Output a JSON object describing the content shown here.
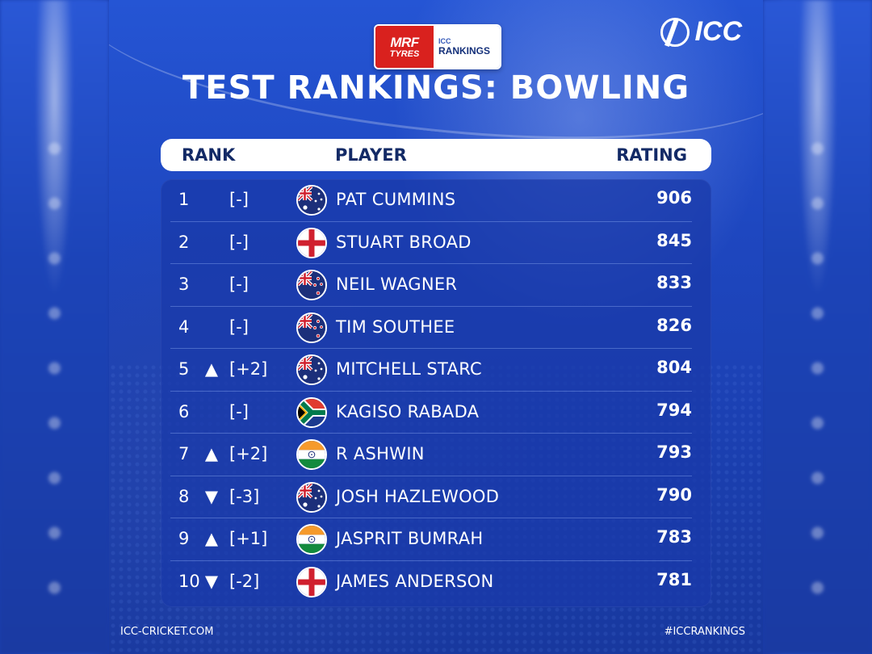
{
  "sponsor": {
    "mrf_line1": "MRF",
    "mrf_line2": "TYRES",
    "icc_small": "ICC",
    "rankings_label": "RANKINGS"
  },
  "brand": {
    "logo_text": "ICC"
  },
  "title": "TEST RANKINGS: BOWLING",
  "table": {
    "headers": {
      "rank": "RANK",
      "player": "PLAYER",
      "rating": "RATING"
    },
    "rows": [
      {
        "rank": "1",
        "trend": "",
        "change": "[-]",
        "flag": "australia-flag",
        "player": "PAT CUMMINS",
        "rating": "906"
      },
      {
        "rank": "2",
        "trend": "",
        "change": "[-]",
        "flag": "england-flag",
        "player": "STUART BROAD",
        "rating": "845"
      },
      {
        "rank": "3",
        "trend": "",
        "change": "[-]",
        "flag": "new-zealand-flag",
        "player": "NEIL WAGNER",
        "rating": "833"
      },
      {
        "rank": "4",
        "trend": "",
        "change": "[-]",
        "flag": "new-zealand-flag",
        "player": "TIM SOUTHEE",
        "rating": "826"
      },
      {
        "rank": "5",
        "trend": "▲",
        "change": "[+2]",
        "flag": "australia-flag",
        "player": "MITCHELL STARC",
        "rating": "804"
      },
      {
        "rank": "6",
        "trend": "",
        "change": "[-]",
        "flag": "south-africa-flag",
        "player": "KAGISO RABADA",
        "rating": "794"
      },
      {
        "rank": "7",
        "trend": "▲",
        "change": "[+2]",
        "flag": "india-flag",
        "player": "R ASHWIN",
        "rating": "793"
      },
      {
        "rank": "8",
        "trend": "▼",
        "change": "[-3]",
        "flag": "australia-flag",
        "player": "JOSH HAZLEWOOD",
        "rating": "790"
      },
      {
        "rank": "9",
        "trend": "▲",
        "change": "[+1]",
        "flag": "india-flag",
        "player": "JASPRIT BUMRAH",
        "rating": "783"
      },
      {
        "rank": "10",
        "trend": "▼",
        "change": "[-2]",
        "flag": "england-flag",
        "player": "JAMES ANDERSON",
        "rating": "781"
      }
    ]
  },
  "footer": {
    "website": "ICC-CRICKET.COM",
    "hashtag": "#ICCRANKINGS"
  },
  "colors": {
    "background": "#1e47c0",
    "header_bg": "#ffffff",
    "header_text": "#132a66",
    "sponsor_red": "#d9211e"
  }
}
